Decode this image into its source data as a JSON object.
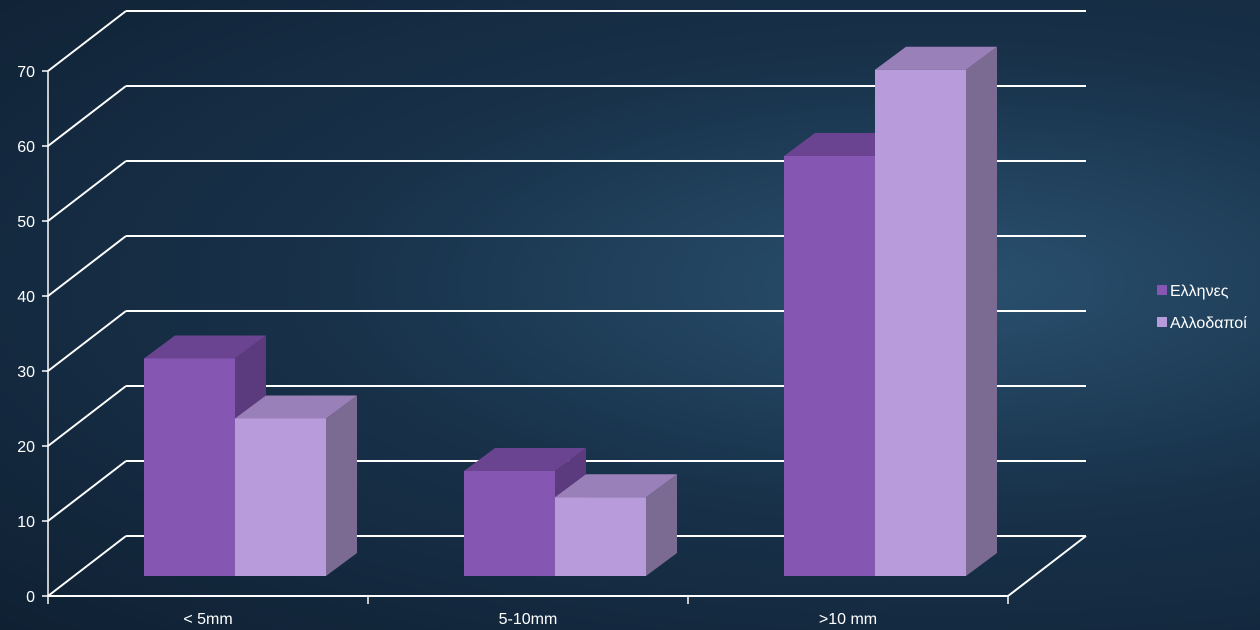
{
  "chart_data": {
    "type": "bar",
    "categories": [
      "< 5mm",
      "5-10mm",
      ">10 mm"
    ],
    "series": [
      {
        "name": "Ελληνες",
        "values": [
          29,
          14,
          56
        ]
      },
      {
        "name": "Αλλοδαποί",
        "values": [
          21,
          10.5,
          67.5
        ]
      }
    ],
    "ylim": [
      0,
      70
    ],
    "yticks": [
      0,
      10,
      20,
      30,
      40,
      50,
      60,
      70
    ],
    "grid": true,
    "legend": "right",
    "colors": {
      "series": [
        "#8557b3",
        "#b89bdb"
      ],
      "series_top": [
        "#6a4490",
        "#9a80b8"
      ],
      "series_side": [
        "#5c3a7e",
        "#7b6a92"
      ],
      "axis": "#ffffff"
    }
  }
}
